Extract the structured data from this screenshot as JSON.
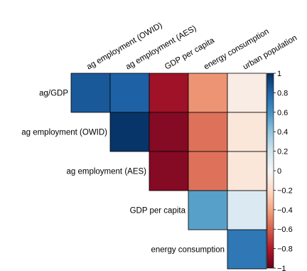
{
  "chart_data": {
    "type": "heatmap",
    "layout": "upper-triangle",
    "row_labels": [
      "ag/GDP",
      "ag employment (OWID)",
      "ag employment (AES)",
      "GDP per capita",
      "energy consumption"
    ],
    "col_labels": [
      "ag employment (OWID)",
      "ag employment (AES)",
      "GDP per capita",
      "energy consumption",
      "urban population"
    ],
    "matrix": [
      [
        0.85,
        0.82,
        -0.85,
        -0.45,
        -0.08
      ],
      [
        null,
        0.98,
        -0.92,
        -0.55,
        -0.12
      ],
      [
        null,
        null,
        -0.92,
        -0.55,
        -0.12
      ],
      [
        null,
        null,
        null,
        0.55,
        0.15
      ],
      [
        null,
        null,
        null,
        null,
        0.72
      ]
    ],
    "colorbar": {
      "range": [
        -1,
        1
      ],
      "ticks": [
        "1",
        "0.8",
        "0.6",
        "0.4",
        "0.2",
        "0",
        "−0.2",
        "−0.4",
        "−0.6",
        "−0.8",
        "−1"
      ],
      "colors": {
        "strong_negative": "#67001f",
        "negative": "#d6604d",
        "neutral": "#f7f7f7",
        "positive": "#4393c3",
        "strong_positive": "#053061"
      }
    }
  }
}
